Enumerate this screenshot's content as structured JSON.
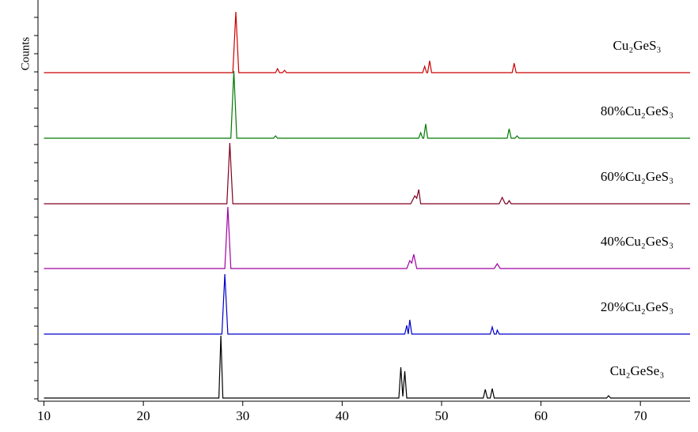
{
  "chart_data": {
    "type": "line",
    "y_label": "Counts",
    "xlim": [
      9.4,
      75
    ],
    "xticks": [
      10,
      20,
      30,
      40,
      50,
      60,
      70
    ],
    "ylim": [
      0,
      505
    ],
    "yticks": [
      0,
      23,
      46,
      69,
      92,
      115,
      138,
      161,
      184,
      207,
      230,
      253,
      276,
      299,
      322,
      345,
      368,
      391,
      414,
      437,
      460,
      483
    ],
    "series": [
      {
        "name": "Cu₂GeS₃",
        "color": "#cc0000",
        "x": [
          10,
          29.0,
          29.3,
          29.6,
          33.3,
          33.5,
          33.7,
          34.0,
          34.2,
          34.4,
          48.1,
          48.3,
          48.5,
          48.6,
          48.8,
          49.0,
          57.1,
          57.3,
          57.5,
          75
        ],
        "values": [
          413,
          413,
          490,
          413,
          413,
          418,
          413,
          413,
          416,
          413,
          413,
          421,
          413,
          413,
          428,
          413,
          413,
          425,
          413,
          413
        ]
      },
      {
        "name": "80%Cu₂GeS₃",
        "color": "#007a00",
        "x": [
          10,
          28.8,
          29.1,
          29.4,
          33.1,
          33.3,
          33.5,
          47.7,
          47.9,
          48.1,
          48.2,
          48.4,
          48.6,
          56.6,
          56.8,
          57.0,
          57.4,
          57.6,
          57.8,
          75
        ],
        "values": [
          330,
          330,
          415,
          330,
          330,
          333,
          330,
          330,
          337,
          330,
          330,
          348,
          330,
          330,
          342,
          330,
          330,
          333,
          330,
          330
        ]
      },
      {
        "name": "60%Cu₂GeS₃",
        "color": "#800020",
        "x": [
          10,
          28.4,
          28.7,
          29.0,
          46.9,
          47.3,
          47.5,
          47.7,
          47.9,
          55.8,
          56.1,
          56.4,
          56.6,
          56.8,
          57.0,
          75
        ],
        "values": [
          247,
          247,
          324,
          247,
          247,
          257,
          254,
          265,
          247,
          247,
          255,
          247,
          247,
          251,
          247,
          247
        ]
      },
      {
        "name": "40%Cu₂GeS₃",
        "color": "#a000a0",
        "x": [
          10,
          28.2,
          28.5,
          28.8,
          46.5,
          46.8,
          47.0,
          47.2,
          47.5,
          55.3,
          55.6,
          55.9,
          75
        ],
        "values": [
          165,
          165,
          243,
          165,
          165,
          175,
          172,
          183,
          165,
          165,
          171,
          165,
          165
        ]
      },
      {
        "name": "20%Cu₂GeS₃",
        "color": "#0000cc",
        "x": [
          10,
          27.9,
          28.2,
          28.5,
          46.3,
          46.5,
          46.65,
          46.8,
          47.0,
          54.9,
          55.1,
          55.3,
          55.5,
          55.6,
          55.8,
          75
        ],
        "values": [
          82,
          82,
          158,
          82,
          82,
          93,
          82,
          100,
          82,
          82,
          91,
          82,
          82,
          87,
          82,
          82
        ]
      },
      {
        "name": "Cu₂GeSe₃",
        "color": "#000000",
        "x": [
          10,
          27.6,
          27.8,
          28.0,
          45.7,
          45.9,
          46.1,
          46.3,
          46.5,
          54.2,
          54.4,
          54.6,
          54.9,
          55.1,
          55.3,
          66.6,
          66.8,
          67.0,
          75
        ],
        "values": [
          1,
          1,
          80,
          1,
          1,
          40,
          3,
          35,
          1,
          1,
          12,
          1,
          1,
          13,
          1,
          1,
          4,
          1,
          1
        ]
      }
    ]
  }
}
